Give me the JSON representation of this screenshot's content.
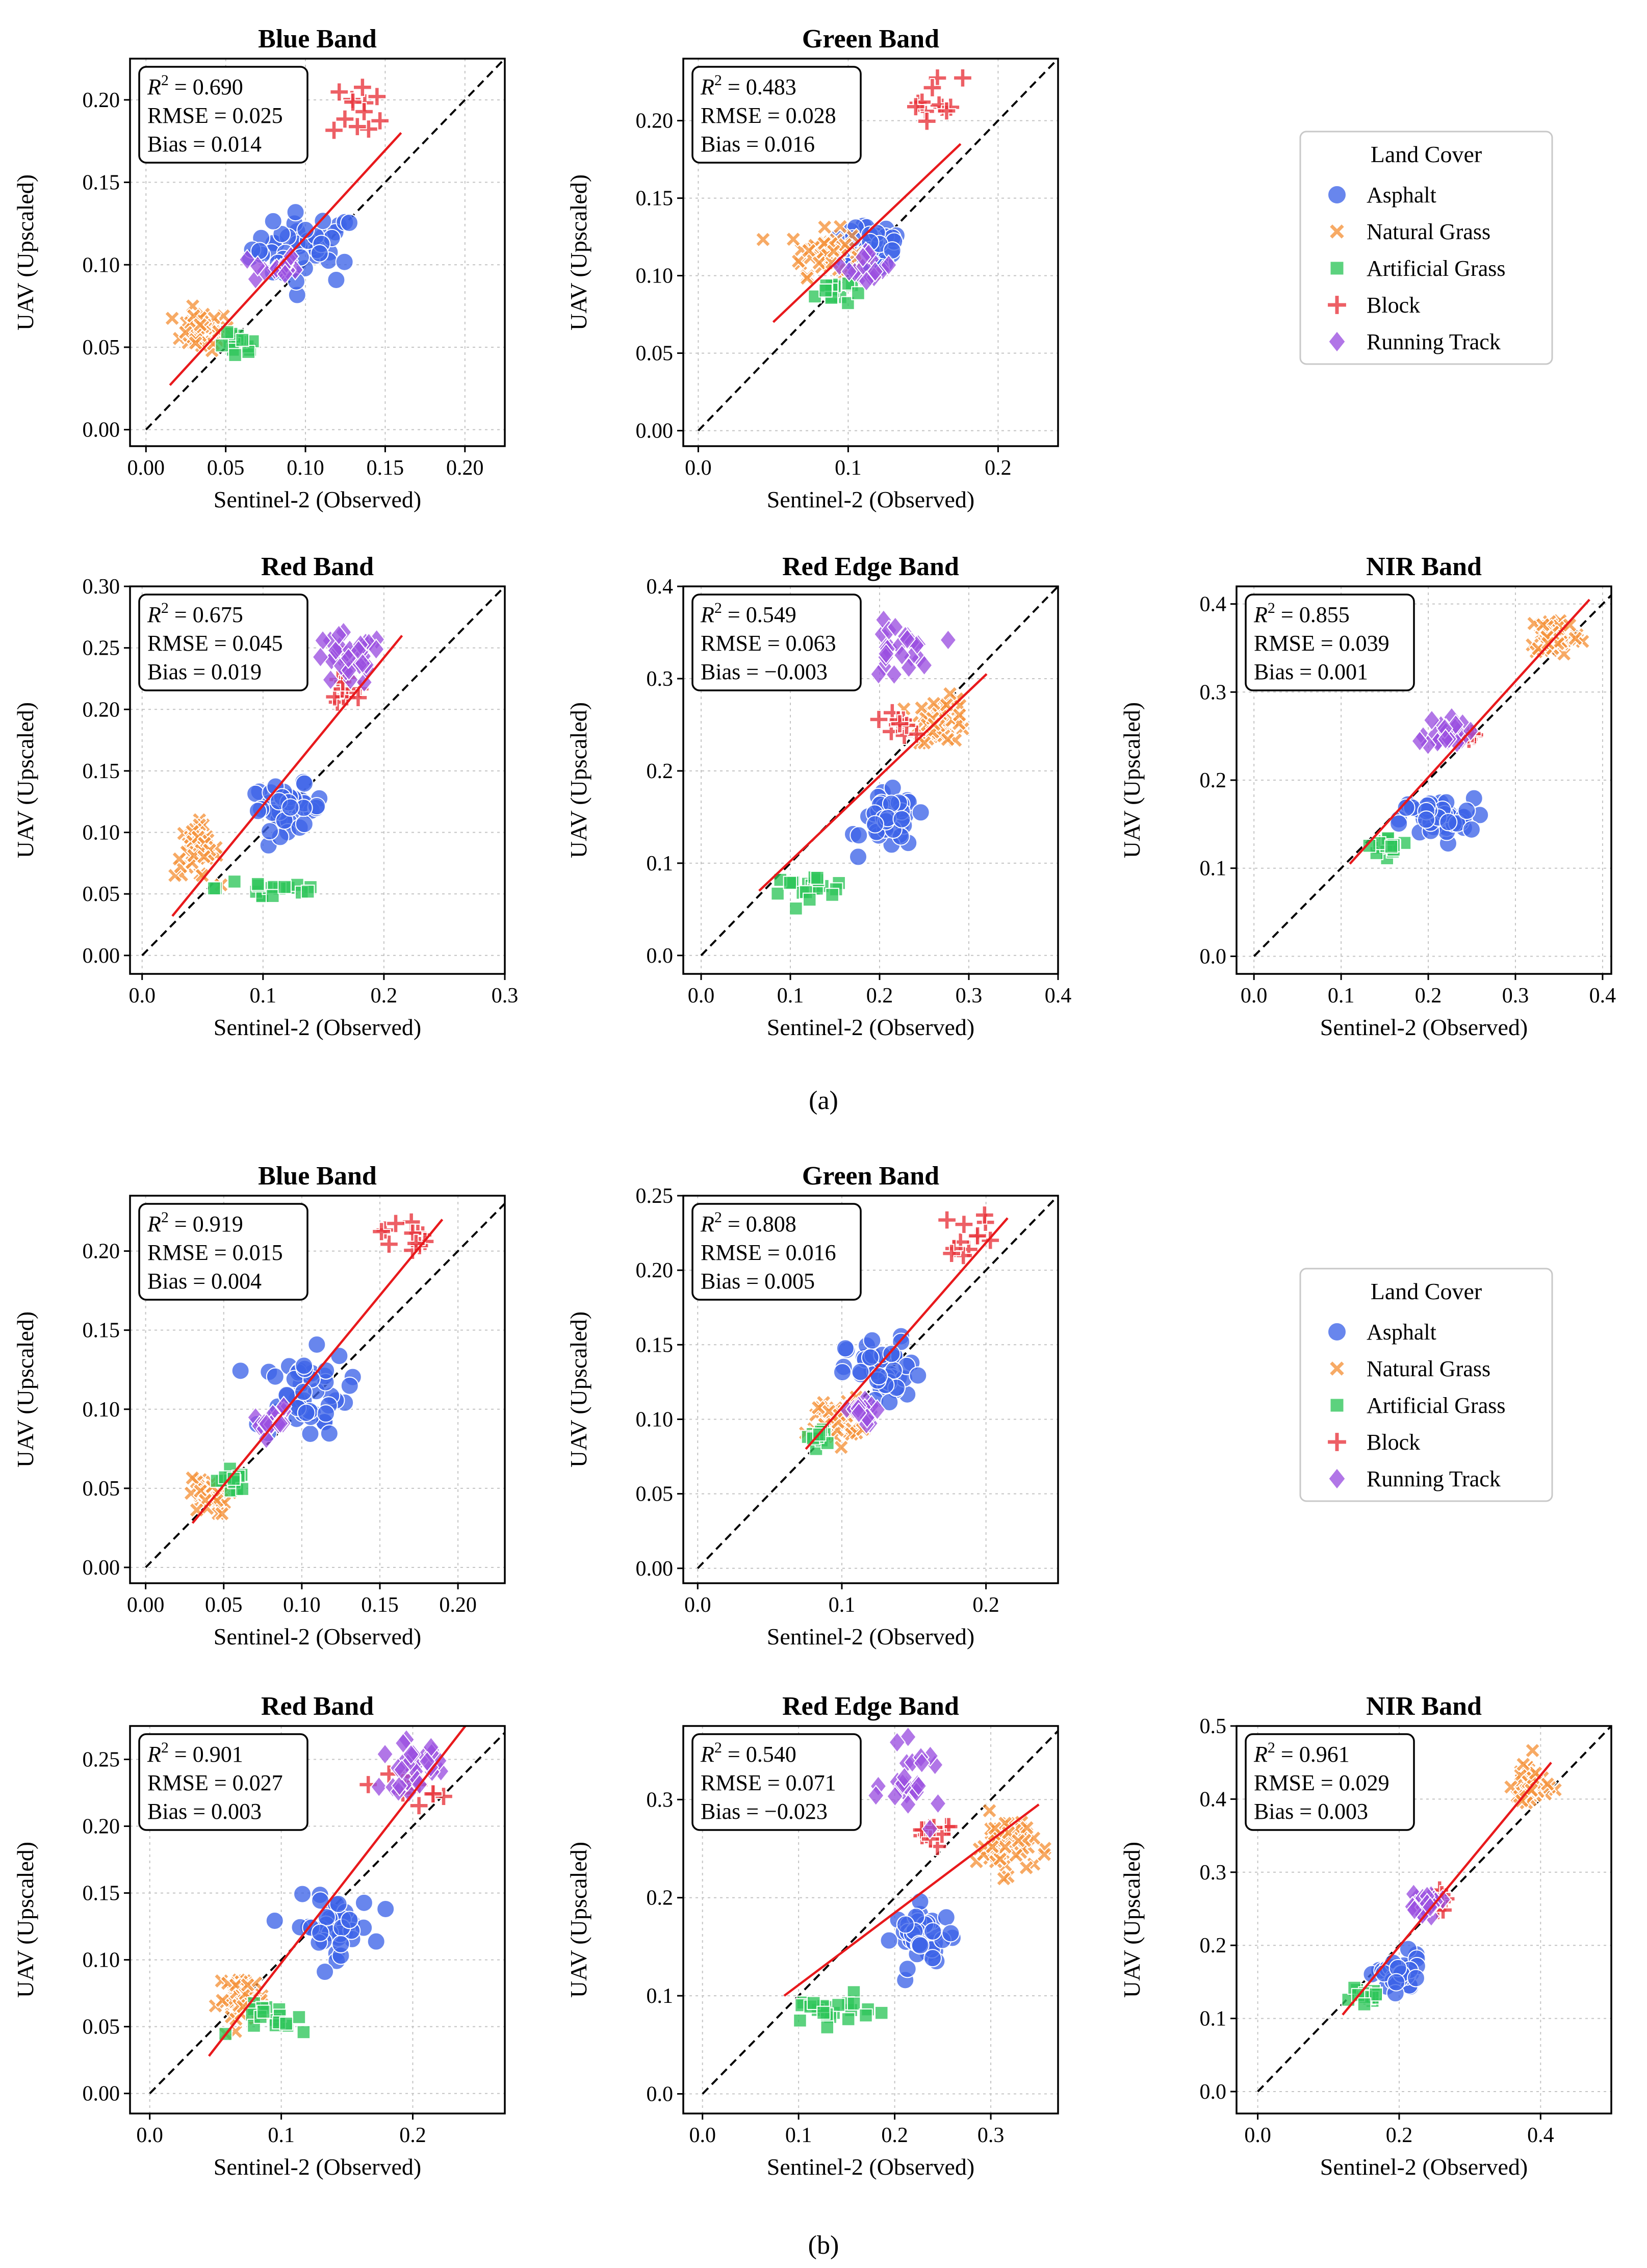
{
  "colors": {
    "Asphalt": "#3d64e8",
    "Natural Grass": "#f5923a",
    "Artificial Grass": "#2ec55a",
    "Block": "#e8323a",
    "Running Track": "#9b4fe0",
    "fit_line": "#e8191c",
    "one_to_one": "#000000"
  },
  "legend": {
    "title": "Land Cover",
    "items": [
      {
        "label": "Asphalt",
        "marker": "circle-icon"
      },
      {
        "label": "Natural Grass",
        "marker": "cross-x-icon"
      },
      {
        "label": "Artificial Grass",
        "marker": "square-icon"
      },
      {
        "label": "Block",
        "marker": "plus-icon"
      },
      {
        "label": "Running Track",
        "marker": "diamond-icon"
      }
    ]
  },
  "captions": {
    "a": "(a)",
    "b": "(b)"
  },
  "chart_data": [
    {
      "type": "scatter",
      "group": "a",
      "title": "Blue Band",
      "xlabel": "Sentinel-2 (Observed)",
      "ylabel": "UAV (Upscaled)",
      "xlim": [
        -0.01,
        0.225
      ],
      "ylim": [
        -0.01,
        0.225
      ],
      "xticks": [
        "0.00",
        "0.05",
        "0.10",
        "0.15",
        "0.20"
      ],
      "yticks": [
        "0.00",
        "0.05",
        "0.10",
        "0.15",
        "0.20"
      ],
      "stats": {
        "r2": "0.690",
        "rmse": "RMSE = 0.025",
        "bias": "Bias = 0.014"
      },
      "fit": [
        [
          0.015,
          0.027
        ],
        [
          0.16,
          0.18
        ]
      ],
      "series": [
        {
          "name": "Asphalt",
          "center": [
            0.1,
            0.11
          ],
          "spread": [
            0.028,
            0.018
          ],
          "n": 45
        },
        {
          "name": "Natural Grass",
          "center": [
            0.035,
            0.06
          ],
          "spread": [
            0.015,
            0.01
          ],
          "n": 40
        },
        {
          "name": "Artificial Grass",
          "center": [
            0.058,
            0.05
          ],
          "spread": [
            0.01,
            0.007
          ],
          "n": 15
        },
        {
          "name": "Block",
          "center": [
            0.135,
            0.195
          ],
          "spread": [
            0.015,
            0.015
          ],
          "n": 12
        },
        {
          "name": "Running Track",
          "center": [
            0.08,
            0.098
          ],
          "spread": [
            0.012,
            0.008
          ],
          "n": 15
        }
      ]
    },
    {
      "type": "scatter",
      "group": "a",
      "title": "Green Band",
      "xlabel": "Sentinel-2 (Observed)",
      "ylabel": "UAV (Upscaled)",
      "xlim": [
        -0.01,
        0.24
      ],
      "ylim": [
        -0.01,
        0.24
      ],
      "xticks": [
        "0.0",
        "0.1",
        "0.2"
      ],
      "yticks": [
        "0.00",
        "0.05",
        "0.10",
        "0.15",
        "0.20"
      ],
      "stats": {
        "r2": "0.483",
        "rmse": "RMSE = 0.028",
        "bias": "Bias = 0.016"
      },
      "fit": [
        [
          0.05,
          0.07
        ],
        [
          0.175,
          0.185
        ]
      ],
      "series": [
        {
          "name": "Asphalt",
          "center": [
            0.115,
            0.12
          ],
          "spread": [
            0.022,
            0.018
          ],
          "n": 40
        },
        {
          "name": "Natural Grass",
          "center": [
            0.085,
            0.115
          ],
          "spread": [
            0.02,
            0.012
          ],
          "n": 50
        },
        {
          "name": "Artificial Grass",
          "center": [
            0.09,
            0.09
          ],
          "spread": [
            0.01,
            0.008
          ],
          "n": 15
        },
        {
          "name": "Block",
          "center": [
            0.158,
            0.215
          ],
          "spread": [
            0.015,
            0.012
          ],
          "n": 12
        },
        {
          "name": "Running Track",
          "center": [
            0.115,
            0.105
          ],
          "spread": [
            0.012,
            0.01
          ],
          "n": 15
        }
      ]
    },
    {
      "type": "scatter",
      "group": "a",
      "title": "Red Band",
      "xlabel": "Sentinel-2 (Observed)",
      "ylabel": "UAV (Upscaled)",
      "xlim": [
        -0.01,
        0.3
      ],
      "ylim": [
        -0.015,
        0.3
      ],
      "xticks": [
        "0.0",
        "0.1",
        "0.2",
        "0.3"
      ],
      "yticks": [
        "0.00",
        "0.05",
        "0.10",
        "0.15",
        "0.20",
        "0.25",
        "0.30"
      ],
      "stats": {
        "r2": "0.675",
        "rmse": "RMSE = 0.045",
        "bias": "Bias = 0.019"
      },
      "fit": [
        [
          0.025,
          0.032
        ],
        [
          0.215,
          0.26
        ]
      ],
      "series": [
        {
          "name": "Asphalt",
          "center": [
            0.12,
            0.12
          ],
          "spread": [
            0.025,
            0.015
          ],
          "n": 45
        },
        {
          "name": "Natural Grass",
          "center": [
            0.045,
            0.085
          ],
          "spread": [
            0.015,
            0.018
          ],
          "n": 40
        },
        {
          "name": "Artificial Grass",
          "center": [
            0.11,
            0.055
          ],
          "spread": [
            0.04,
            0.01
          ],
          "n": 18
        },
        {
          "name": "Block",
          "center": [
            0.17,
            0.215
          ],
          "spread": [
            0.015,
            0.015
          ],
          "n": 12
        },
        {
          "name": "Running Track",
          "center": [
            0.17,
            0.24
          ],
          "spread": [
            0.025,
            0.018
          ],
          "n": 35
        }
      ]
    },
    {
      "type": "scatter",
      "group": "a",
      "title": "Red Edge Band",
      "xlabel": "Sentinel-2 (Observed)",
      "ylabel": "UAV (Upscaled)",
      "xlim": [
        -0.02,
        0.4
      ],
      "ylim": [
        -0.02,
        0.4
      ],
      "xticks": [
        "0.0",
        "0.1",
        "0.2",
        "0.3",
        "0.4"
      ],
      "yticks": [
        "0.0",
        "0.1",
        "0.2",
        "0.3",
        "0.4"
      ],
      "stats": {
        "r2": "0.549",
        "rmse": "RMSE = 0.063",
        "bias": "Bias = −0.003"
      },
      "fit": [
        [
          0.065,
          0.07
        ],
        [
          0.32,
          0.305
        ]
      ],
      "series": [
        {
          "name": "Asphalt",
          "center": [
            0.21,
            0.145
          ],
          "spread": [
            0.025,
            0.025
          ],
          "n": 45
        },
        {
          "name": "Natural Grass",
          "center": [
            0.27,
            0.255
          ],
          "spread": [
            0.025,
            0.02
          ],
          "n": 50
        },
        {
          "name": "Artificial Grass",
          "center": [
            0.12,
            0.075
          ],
          "spread": [
            0.04,
            0.01
          ],
          "n": 20
        },
        {
          "name": "Block",
          "center": [
            0.22,
            0.255
          ],
          "spread": [
            0.015,
            0.015
          ],
          "n": 10
        },
        {
          "name": "Running Track",
          "center": [
            0.22,
            0.33
          ],
          "spread": [
            0.03,
            0.025
          ],
          "n": 25
        }
      ]
    },
    {
      "type": "scatter",
      "group": "a",
      "title": "NIR Band",
      "xlabel": "Sentinel-2 (Observed)",
      "ylabel": "UAV (Upscaled)",
      "xlim": [
        -0.02,
        0.41
      ],
      "ylim": [
        -0.02,
        0.42
      ],
      "xticks": [
        "0.0",
        "0.1",
        "0.2",
        "0.3",
        "0.4"
      ],
      "yticks": [
        "0.0",
        "0.1",
        "0.2",
        "0.3",
        "0.4"
      ],
      "stats": {
        "r2": "0.855",
        "rmse": "RMSE = 0.039",
        "bias": "Bias = 0.001"
      },
      "fit": [
        [
          0.11,
          0.105
        ],
        [
          0.385,
          0.405
        ]
      ],
      "series": [
        {
          "name": "Asphalt",
          "center": [
            0.21,
            0.155
          ],
          "spread": [
            0.035,
            0.02
          ],
          "n": 45
        },
        {
          "name": "Natural Grass",
          "center": [
            0.345,
            0.365
          ],
          "spread": [
            0.025,
            0.02
          ],
          "n": 55
        },
        {
          "name": "Artificial Grass",
          "center": [
            0.155,
            0.125
          ],
          "spread": [
            0.02,
            0.008
          ],
          "n": 20
        },
        {
          "name": "Block",
          "center": [
            0.245,
            0.25
          ],
          "spread": [
            0.01,
            0.01
          ],
          "n": 8
        },
        {
          "name": "Running Track",
          "center": [
            0.22,
            0.255
          ],
          "spread": [
            0.02,
            0.015
          ],
          "n": 25
        }
      ]
    },
    {
      "type": "scatter",
      "group": "b",
      "title": "Blue Band",
      "xlabel": "Sentinel-2 (Observed)",
      "ylabel": "UAV (Upscaled)",
      "xlim": [
        -0.01,
        0.23
      ],
      "ylim": [
        -0.01,
        0.235
      ],
      "xticks": [
        "0.00",
        "0.05",
        "0.10",
        "0.15",
        "0.20"
      ],
      "yticks": [
        "0.00",
        "0.05",
        "0.10",
        "0.15",
        "0.20"
      ],
      "stats": {
        "r2": "0.919",
        "rmse": "RMSE = 0.015",
        "bias": "Bias = 0.004"
      },
      "fit": [
        [
          0.03,
          0.028
        ],
        [
          0.19,
          0.22
        ]
      ],
      "series": [
        {
          "name": "Asphalt",
          "center": [
            0.1,
            0.11
          ],
          "spread": [
            0.025,
            0.022
          ],
          "n": 50
        },
        {
          "name": "Natural Grass",
          "center": [
            0.04,
            0.045
          ],
          "spread": [
            0.01,
            0.01
          ],
          "n": 35
        },
        {
          "name": "Artificial Grass",
          "center": [
            0.055,
            0.055
          ],
          "spread": [
            0.008,
            0.007
          ],
          "n": 15
        },
        {
          "name": "Block",
          "center": [
            0.165,
            0.21
          ],
          "spread": [
            0.012,
            0.01
          ],
          "n": 12
        },
        {
          "name": "Running Track",
          "center": [
            0.08,
            0.092
          ],
          "spread": [
            0.01,
            0.008
          ],
          "n": 15
        }
      ]
    },
    {
      "type": "scatter",
      "group": "b",
      "title": "Green Band",
      "xlabel": "Sentinel-2 (Observed)",
      "ylabel": "UAV (Upscaled)",
      "xlim": [
        -0.01,
        0.25
      ],
      "ylim": [
        -0.01,
        0.25
      ],
      "xticks": [
        "0.0",
        "0.1",
        "0.2"
      ],
      "yticks": [
        "0.00",
        "0.05",
        "0.10",
        "0.15",
        "0.20",
        "0.25"
      ],
      "stats": {
        "r2": "0.808",
        "rmse": "RMSE = 0.016",
        "bias": "Bias = 0.005"
      },
      "fit": [
        [
          0.075,
          0.08
        ],
        [
          0.215,
          0.235
        ]
      ],
      "series": [
        {
          "name": "Asphalt",
          "center": [
            0.13,
            0.13
          ],
          "spread": [
            0.022,
            0.02
          ],
          "n": 45
        },
        {
          "name": "Natural Grass",
          "center": [
            0.095,
            0.1
          ],
          "spread": [
            0.015,
            0.012
          ],
          "n": 45
        },
        {
          "name": "Artificial Grass",
          "center": [
            0.085,
            0.088
          ],
          "spread": [
            0.008,
            0.006
          ],
          "n": 12
        },
        {
          "name": "Block",
          "center": [
            0.19,
            0.225
          ],
          "spread": [
            0.015,
            0.012
          ],
          "n": 12
        },
        {
          "name": "Running Track",
          "center": [
            0.115,
            0.105
          ],
          "spread": [
            0.01,
            0.008
          ],
          "n": 15
        }
      ]
    },
    {
      "type": "scatter",
      "group": "b",
      "title": "Red Band",
      "xlabel": "Sentinel-2 (Observed)",
      "ylabel": "UAV (Upscaled)",
      "xlim": [
        -0.015,
        0.27
      ],
      "ylim": [
        -0.015,
        0.275
      ],
      "xticks": [
        "0.0",
        "0.1",
        "0.2"
      ],
      "yticks": [
        "0.00",
        "0.05",
        "0.10",
        "0.15",
        "0.20",
        "0.25"
      ],
      "stats": {
        "r2": "0.901",
        "rmse": "RMSE = 0.027",
        "bias": "Bias = 0.003"
      },
      "fit": [
        [
          0.045,
          0.028
        ],
        [
          0.24,
          0.275
        ]
      ],
      "series": [
        {
          "name": "Asphalt",
          "center": [
            0.14,
            0.125
          ],
          "spread": [
            0.025,
            0.018
          ],
          "n": 45
        },
        {
          "name": "Natural Grass",
          "center": [
            0.07,
            0.07
          ],
          "spread": [
            0.015,
            0.015
          ],
          "n": 45
        },
        {
          "name": "Artificial Grass",
          "center": [
            0.1,
            0.055
          ],
          "spread": [
            0.025,
            0.01
          ],
          "n": 18
        },
        {
          "name": "Block",
          "center": [
            0.2,
            0.23
          ],
          "spread": [
            0.015,
            0.012
          ],
          "n": 12
        },
        {
          "name": "Running Track",
          "center": [
            0.2,
            0.245
          ],
          "spread": [
            0.02,
            0.015
          ],
          "n": 30
        }
      ]
    },
    {
      "type": "scatter",
      "group": "b",
      "title": "Red Edge Band",
      "xlabel": "Sentinel-2 (Observed)",
      "ylabel": "UAV (Upscaled)",
      "xlim": [
        -0.02,
        0.37
      ],
      "ylim": [
        -0.02,
        0.375
      ],
      "xticks": [
        "0.0",
        "0.1",
        "0.2",
        "0.3"
      ],
      "yticks": [
        "0.0",
        "0.1",
        "0.2",
        "0.3"
      ],
      "stats": {
        "r2": "0.540",
        "rmse": "RMSE = 0.071",
        "bias": "Bias = −0.023"
      },
      "fit": [
        [
          0.085,
          0.1
        ],
        [
          0.35,
          0.295
        ]
      ],
      "series": [
        {
          "name": "Asphalt",
          "center": [
            0.23,
            0.16
          ],
          "spread": [
            0.025,
            0.025
          ],
          "n": 45
        },
        {
          "name": "Natural Grass",
          "center": [
            0.315,
            0.255
          ],
          "spread": [
            0.025,
            0.025
          ],
          "n": 55
        },
        {
          "name": "Artificial Grass",
          "center": [
            0.13,
            0.085
          ],
          "spread": [
            0.04,
            0.012
          ],
          "n": 22
        },
        {
          "name": "Block",
          "center": [
            0.24,
            0.27
          ],
          "spread": [
            0.02,
            0.012
          ],
          "n": 12
        },
        {
          "name": "Running Track",
          "center": [
            0.22,
            0.315
          ],
          "spread": [
            0.025,
            0.03
          ],
          "n": 25
        }
      ]
    },
    {
      "type": "scatter",
      "group": "b",
      "title": "NIR Band",
      "xlabel": "Sentinel-2 (Observed)",
      "ylabel": "UAV (Upscaled)",
      "xlim": [
        -0.03,
        0.5
      ],
      "ylim": [
        -0.03,
        0.5
      ],
      "xticks": [
        "0.0",
        "0.2",
        "0.4"
      ],
      "yticks": [
        "0.0",
        "0.1",
        "0.2",
        "0.3",
        "0.4",
        "0.5"
      ],
      "stats": {
        "r2": "0.961",
        "rmse": "RMSE = 0.029",
        "bias": "Bias = 0.003"
      },
      "fit": [
        [
          0.12,
          0.105
        ],
        [
          0.415,
          0.45
        ]
      ],
      "series": [
        {
          "name": "Asphalt",
          "center": [
            0.2,
            0.16
          ],
          "spread": [
            0.025,
            0.02
          ],
          "n": 45
        },
        {
          "name": "Natural Grass",
          "center": [
            0.385,
            0.42
          ],
          "spread": [
            0.02,
            0.03
          ],
          "n": 45
        },
        {
          "name": "Artificial Grass",
          "center": [
            0.15,
            0.13
          ],
          "spread": [
            0.015,
            0.008
          ],
          "n": 15
        },
        {
          "name": "Block",
          "center": [
            0.26,
            0.26
          ],
          "spread": [
            0.01,
            0.01
          ],
          "n": 8
        },
        {
          "name": "Running Track",
          "center": [
            0.235,
            0.255
          ],
          "spread": [
            0.02,
            0.015
          ],
          "n": 25
        }
      ]
    }
  ]
}
